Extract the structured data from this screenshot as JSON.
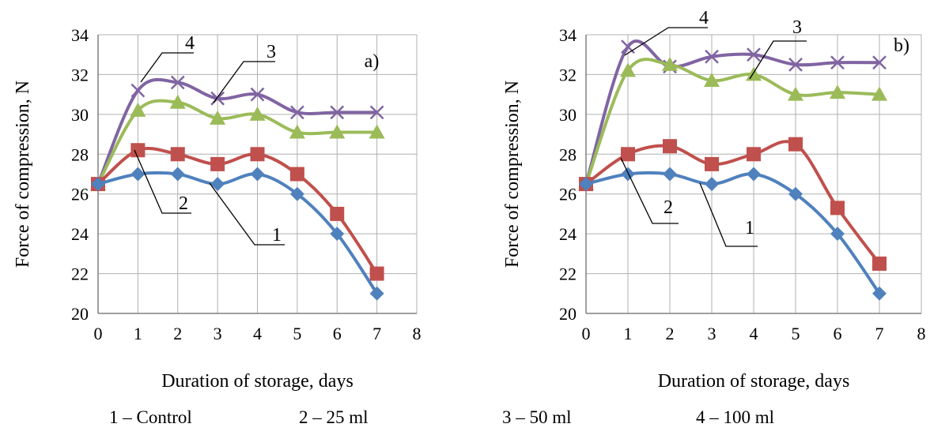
{
  "chart_data": [
    {
      "type": "line",
      "panel_label": "a)",
      "xlabel": "Duration of storage, days",
      "ylabel": "Force of compression, N",
      "xlim": [
        0,
        8
      ],
      "ylim": [
        20,
        34
      ],
      "x_ticks": [
        0,
        1,
        2,
        3,
        4,
        5,
        6,
        7,
        8
      ],
      "y_ticks": [
        20,
        22,
        24,
        26,
        28,
        30,
        32,
        34
      ],
      "grid": true,
      "x": [
        0,
        1,
        2,
        3,
        4,
        5,
        6,
        7
      ],
      "series": [
        {
          "name": "1",
          "marker": "diamond",
          "color": "#4F81BD",
          "values": [
            26.5,
            27.0,
            27.0,
            26.5,
            27.0,
            26.0,
            24.0,
            21.0
          ]
        },
        {
          "name": "2",
          "marker": "square",
          "color": "#C0504D",
          "values": [
            26.5,
            28.2,
            28.0,
            27.5,
            28.0,
            27.0,
            25.0,
            22.0
          ]
        },
        {
          "name": "3",
          "marker": "triangle",
          "color": "#9BBB59",
          "values": [
            26.5,
            30.2,
            30.6,
            29.8,
            30.0,
            29.1,
            29.1,
            29.1
          ]
        },
        {
          "name": "4",
          "marker": "x",
          "color": "#8064A2",
          "values": [
            26.5,
            31.2,
            31.6,
            30.8,
            31.0,
            30.1,
            30.1,
            30.1
          ]
        }
      ],
      "callouts": [
        {
          "label": "4",
          "series": "4"
        },
        {
          "label": "3",
          "series": "3"
        },
        {
          "label": "2",
          "series": "2"
        },
        {
          "label": "1",
          "series": "1"
        }
      ]
    },
    {
      "type": "line",
      "panel_label": "b)",
      "xlabel": "Duration of storage, days",
      "ylabel": "Force of compression, N",
      "xlim": [
        0,
        8
      ],
      "ylim": [
        20,
        34
      ],
      "x_ticks": [
        0,
        1,
        2,
        3,
        4,
        5,
        6,
        7,
        8
      ],
      "y_ticks": [
        20,
        22,
        24,
        26,
        28,
        30,
        32,
        34
      ],
      "grid": true,
      "x": [
        0,
        1,
        2,
        3,
        4,
        5,
        6,
        7
      ],
      "series": [
        {
          "name": "1",
          "marker": "diamond",
          "color": "#4F81BD",
          "values": [
            26.5,
            27.0,
            27.0,
            26.5,
            27.0,
            26.0,
            24.0,
            21.0
          ]
        },
        {
          "name": "2",
          "marker": "square",
          "color": "#C0504D",
          "values": [
            26.5,
            28.0,
            28.4,
            27.5,
            28.0,
            28.5,
            25.3,
            22.5
          ]
        },
        {
          "name": "3",
          "marker": "triangle",
          "color": "#9BBB59",
          "values": [
            26.5,
            32.2,
            32.5,
            31.7,
            32.0,
            31.0,
            31.1,
            31.0
          ]
        },
        {
          "name": "4",
          "marker": "x",
          "color": "#8064A2",
          "values": [
            26.5,
            33.4,
            32.4,
            32.9,
            33.0,
            32.5,
            32.6,
            32.6
          ]
        }
      ],
      "callouts": [
        {
          "label": "4",
          "series": "4"
        },
        {
          "label": "3",
          "series": "3"
        },
        {
          "label": "2",
          "series": "2"
        },
        {
          "label": "1",
          "series": "1"
        }
      ]
    }
  ],
  "legend": [
    {
      "text": "1 – Control"
    },
    {
      "text": "2 – 25 ml"
    },
    {
      "text": "3 – 50 ml"
    },
    {
      "text": "4 – 100 ml"
    }
  ]
}
